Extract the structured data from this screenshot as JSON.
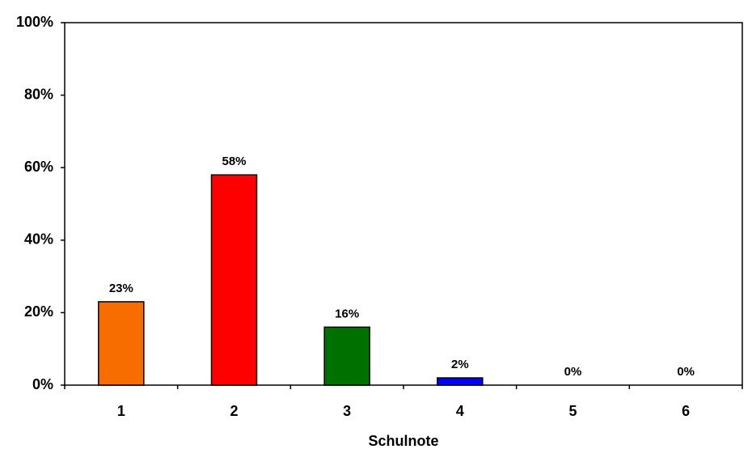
{
  "chart_data": {
    "type": "bar",
    "x_label": "Schulnote",
    "categories": [
      "1",
      "2",
      "3",
      "4",
      "5",
      "6"
    ],
    "values": [
      23,
      58,
      16,
      2,
      0,
      0
    ],
    "value_labels": [
      "23%",
      "58%",
      "16%",
      "2%",
      "0%",
      "0%"
    ],
    "colors": [
      "#f76d00",
      "#ff0000",
      "#007000",
      "#0000ff"
    ],
    "ylim": [
      0,
      100
    ],
    "yticks": [
      {
        "value": 0,
        "label": "0%"
      },
      {
        "value": 20,
        "label": "20%"
      },
      {
        "value": 40,
        "label": "40%"
      },
      {
        "value": 60,
        "label": "60%"
      },
      {
        "value": 80,
        "label": "80%"
      },
      {
        "value": 100,
        "label": "100%"
      }
    ],
    "grid": false
  }
}
